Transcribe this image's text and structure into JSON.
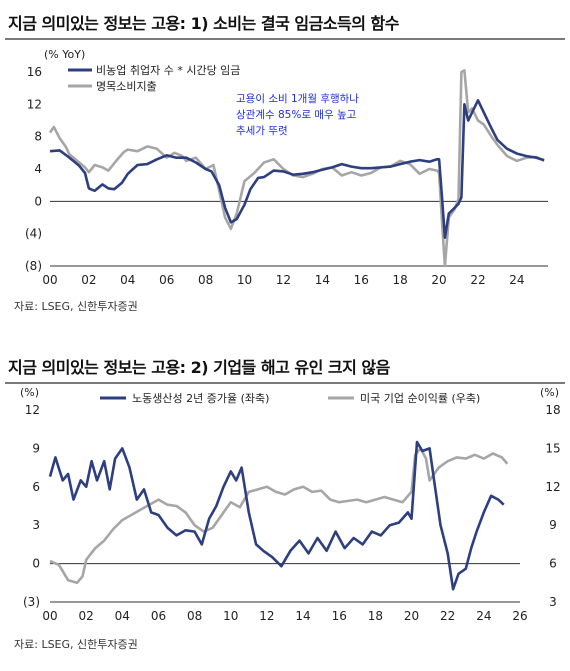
{
  "chart_data": [
    {
      "type": "line",
      "title": "지금 의미있는 정보는 고용: 1) 소비는 결국 임금소득의 함수",
      "ylabel": "(% YoY)",
      "ylim": [
        -8,
        16
      ],
      "yticks": [
        "(8)",
        "(4)",
        "0",
        "4",
        "8",
        "12",
        "16"
      ],
      "xlim": [
        2000,
        2025.6
      ],
      "xticks": [
        "00",
        "02",
        "04",
        "06",
        "08",
        "10",
        "12",
        "14",
        "16",
        "18",
        "20",
        "22",
        "24"
      ],
      "legend_position": "top-left",
      "annotation": [
        "고용이 소비 1개월 후행하나",
        "상관계수 85%로 매우 높고",
        "추세가 뚜렷"
      ],
      "annotation_color": "#1f2fd6",
      "series": [
        {
          "name": "비농업 취업자 수 * 시간당 임금",
          "color": "#2e3f7f",
          "points": [
            [
              2000.0,
              6.2
            ],
            [
              2000.5,
              6.3
            ],
            [
              2001.0,
              5.4
            ],
            [
              2001.5,
              4.4
            ],
            [
              2001.8,
              3.5
            ],
            [
              2002.0,
              1.6
            ],
            [
              2002.3,
              1.3
            ],
            [
              2002.7,
              2.1
            ],
            [
              2003.0,
              1.6
            ],
            [
              2003.3,
              1.5
            ],
            [
              2003.7,
              2.3
            ],
            [
              2004.0,
              3.4
            ],
            [
              2004.5,
              4.5
            ],
            [
              2005.0,
              4.6
            ],
            [
              2005.5,
              5.2
            ],
            [
              2006.0,
              5.7
            ],
            [
              2006.5,
              5.4
            ],
            [
              2007.0,
              5.4
            ],
            [
              2007.5,
              4.8
            ],
            [
              2008.0,
              4.0
            ],
            [
              2008.3,
              3.7
            ],
            [
              2008.7,
              2.0
            ],
            [
              2009.0,
              -0.8
            ],
            [
              2009.3,
              -2.6
            ],
            [
              2009.6,
              -2.2
            ],
            [
              2010.0,
              -0.4
            ],
            [
              2010.3,
              1.5
            ],
            [
              2010.7,
              2.9
            ],
            [
              2011.0,
              3.0
            ],
            [
              2011.5,
              3.8
            ],
            [
              2012.0,
              3.7
            ],
            [
              2012.5,
              3.3
            ],
            [
              2013.0,
              3.4
            ],
            [
              2013.5,
              3.6
            ],
            [
              2014.0,
              3.9
            ],
            [
              2014.5,
              4.2
            ],
            [
              2015.0,
              4.6
            ],
            [
              2015.5,
              4.3
            ],
            [
              2016.0,
              4.1
            ],
            [
              2016.5,
              4.1
            ],
            [
              2017.0,
              4.2
            ],
            [
              2017.5,
              4.3
            ],
            [
              2018.0,
              4.6
            ],
            [
              2018.5,
              4.9
            ],
            [
              2019.0,
              5.1
            ],
            [
              2019.5,
              4.9
            ],
            [
              2019.9,
              5.2
            ],
            [
              2020.0,
              5.2
            ],
            [
              2020.15,
              0.5
            ],
            [
              2020.3,
              -4.5
            ],
            [
              2020.5,
              -1.5
            ],
            [
              2020.8,
              -0.8
            ],
            [
              2021.0,
              -0.3
            ],
            [
              2021.15,
              0.5
            ],
            [
              2021.3,
              12.0
            ],
            [
              2021.5,
              10.0
            ],
            [
              2021.7,
              11.0
            ],
            [
              2022.0,
              12.5
            ],
            [
              2022.3,
              11.0
            ],
            [
              2022.7,
              9.0
            ],
            [
              2023.0,
              7.6
            ],
            [
              2023.5,
              6.5
            ],
            [
              2024.0,
              5.9
            ],
            [
              2024.5,
              5.6
            ],
            [
              2025.0,
              5.4
            ],
            [
              2025.4,
              5.1
            ]
          ]
        },
        {
          "name": "명목소비지출",
          "color": "#a6a6a6",
          "points": [
            [
              2000.0,
              8.5
            ],
            [
              2000.2,
              9.2
            ],
            [
              2000.5,
              7.8
            ],
            [
              2000.8,
              6.8
            ],
            [
              2001.0,
              5.8
            ],
            [
              2001.4,
              5.0
            ],
            [
              2001.8,
              4.2
            ],
            [
              2002.0,
              3.6
            ],
            [
              2002.3,
              4.5
            ],
            [
              2002.7,
              4.2
            ],
            [
              2003.0,
              3.8
            ],
            [
              2003.4,
              5.0
            ],
            [
              2003.8,
              6.1
            ],
            [
              2004.0,
              6.4
            ],
            [
              2004.5,
              6.2
            ],
            [
              2005.0,
              6.8
            ],
            [
              2005.5,
              6.5
            ],
            [
              2006.0,
              5.4
            ],
            [
              2006.4,
              6.0
            ],
            [
              2006.8,
              5.6
            ],
            [
              2007.0,
              5.0
            ],
            [
              2007.5,
              5.4
            ],
            [
              2008.0,
              4.0
            ],
            [
              2008.4,
              4.5
            ],
            [
              2008.8,
              0.2
            ],
            [
              2009.0,
              -2.0
            ],
            [
              2009.3,
              -3.4
            ],
            [
              2009.6,
              -1.5
            ],
            [
              2010.0,
              2.5
            ],
            [
              2010.5,
              3.5
            ],
            [
              2011.0,
              4.8
            ],
            [
              2011.5,
              5.2
            ],
            [
              2012.0,
              4.0
            ],
            [
              2012.5,
              3.2
            ],
            [
              2013.0,
              3.0
            ],
            [
              2013.5,
              3.4
            ],
            [
              2014.0,
              4.0
            ],
            [
              2014.5,
              4.2
            ],
            [
              2015.0,
              3.2
            ],
            [
              2015.5,
              3.6
            ],
            [
              2016.0,
              3.2
            ],
            [
              2016.5,
              3.5
            ],
            [
              2017.0,
              4.2
            ],
            [
              2017.5,
              4.3
            ],
            [
              2018.0,
              5.0
            ],
            [
              2018.5,
              4.6
            ],
            [
              2019.0,
              3.4
            ],
            [
              2019.5,
              4.0
            ],
            [
              2019.9,
              3.8
            ],
            [
              2020.0,
              3.5
            ],
            [
              2020.15,
              -2.5
            ],
            [
              2020.3,
              -8.0
            ],
            [
              2020.5,
              -2.0
            ],
            [
              2020.8,
              -1.0
            ],
            [
              2021.0,
              0.3
            ],
            [
              2021.15,
              16.0
            ],
            [
              2021.3,
              16.2
            ],
            [
              2021.5,
              11.0
            ],
            [
              2021.7,
              11.5
            ],
            [
              2022.0,
              10.0
            ],
            [
              2022.3,
              9.5
            ],
            [
              2022.7,
              8.0
            ],
            [
              2023.0,
              7.0
            ],
            [
              2023.5,
              5.6
            ],
            [
              2024.0,
              5.0
            ],
            [
              2024.5,
              5.4
            ],
            [
              2025.0,
              5.5
            ],
            [
              2025.4,
              5.0
            ]
          ]
        }
      ]
    },
    {
      "type": "line",
      "title": "지금 의미있는 정보는 고용: 2) 기업들 해고 유인 크지 않음",
      "ylabel_left": "(%)",
      "ylabel_right": "(%)",
      "ylim_left": [
        -3,
        12
      ],
      "yticks_left": [
        "(3)",
        "0",
        "3",
        "6",
        "9",
        "12"
      ],
      "ylim_right": [
        3,
        18
      ],
      "yticks_right": [
        "3",
        "6",
        "9",
        "12",
        "15",
        "18"
      ],
      "xlim": [
        2000,
        2026
      ],
      "xticks": [
        "00",
        "02",
        "04",
        "06",
        "08",
        "10",
        "12",
        "14",
        "16",
        "18",
        "20",
        "22",
        "24",
        "26"
      ],
      "legend_position": "top",
      "series": [
        {
          "name": "노동생산성 2년 증가율 (좌축)",
          "color": "#2e3f7f",
          "axis": "left",
          "points": [
            [
              2000.0,
              6.8
            ],
            [
              2000.3,
              8.3
            ],
            [
              2000.7,
              6.5
            ],
            [
              2001.0,
              7.0
            ],
            [
              2001.3,
              5.0
            ],
            [
              2001.7,
              6.5
            ],
            [
              2002.0,
              6.0
            ],
            [
              2002.3,
              8.0
            ],
            [
              2002.6,
              6.5
            ],
            [
              2003.0,
              8.0
            ],
            [
              2003.3,
              5.8
            ],
            [
              2003.6,
              8.2
            ],
            [
              2004.0,
              9.0
            ],
            [
              2004.4,
              7.5
            ],
            [
              2004.8,
              5.0
            ],
            [
              2005.2,
              5.8
            ],
            [
              2005.6,
              4.0
            ],
            [
              2006.0,
              3.8
            ],
            [
              2006.5,
              2.8
            ],
            [
              2007.0,
              2.2
            ],
            [
              2007.5,
              2.6
            ],
            [
              2008.0,
              2.5
            ],
            [
              2008.4,
              1.5
            ],
            [
              2008.8,
              3.5
            ],
            [
              2009.2,
              4.5
            ],
            [
              2009.6,
              6.0
            ],
            [
              2010.0,
              7.2
            ],
            [
              2010.3,
              6.5
            ],
            [
              2010.6,
              7.5
            ],
            [
              2011.0,
              4.0
            ],
            [
              2011.4,
              1.5
            ],
            [
              2011.8,
              1.0
            ],
            [
              2012.3,
              0.5
            ],
            [
              2012.8,
              -0.2
            ],
            [
              2013.3,
              1.0
            ],
            [
              2013.8,
              1.8
            ],
            [
              2014.3,
              0.8
            ],
            [
              2014.8,
              2.0
            ],
            [
              2015.3,
              1.0
            ],
            [
              2015.8,
              2.5
            ],
            [
              2016.3,
              1.2
            ],
            [
              2016.8,
              2.0
            ],
            [
              2017.3,
              1.5
            ],
            [
              2017.8,
              2.5
            ],
            [
              2018.3,
              2.2
            ],
            [
              2018.8,
              3.0
            ],
            [
              2019.3,
              3.2
            ],
            [
              2019.8,
              4.0
            ],
            [
              2020.0,
              3.5
            ],
            [
              2020.3,
              9.5
            ],
            [
              2020.6,
              8.8
            ],
            [
              2021.0,
              9.0
            ],
            [
              2021.3,
              6.0
            ],
            [
              2021.6,
              3.0
            ],
            [
              2022.0,
              0.8
            ],
            [
              2022.3,
              -2.0
            ],
            [
              2022.6,
              -0.8
            ],
            [
              2023.0,
              -0.4
            ],
            [
              2023.3,
              1.2
            ],
            [
              2023.6,
              2.5
            ],
            [
              2024.0,
              4.0
            ],
            [
              2024.4,
              5.3
            ],
            [
              2024.8,
              5.0
            ],
            [
              2025.1,
              4.6
            ]
          ]
        },
        {
          "name": "미국 기업 순이익률 (우축)",
          "color": "#a6a6a6",
          "axis": "right",
          "points": [
            [
              2000.0,
              6.2
            ],
            [
              2000.5,
              5.9
            ],
            [
              2001.0,
              4.7
            ],
            [
              2001.5,
              4.5
            ],
            [
              2001.8,
              5.0
            ],
            [
              2002.0,
              6.3
            ],
            [
              2002.5,
              7.2
            ],
            [
              2003.0,
              7.8
            ],
            [
              2003.5,
              8.7
            ],
            [
              2004.0,
              9.4
            ],
            [
              2004.5,
              9.8
            ],
            [
              2005.0,
              10.2
            ],
            [
              2005.5,
              10.6
            ],
            [
              2006.0,
              11.0
            ],
            [
              2006.5,
              10.6
            ],
            [
              2007.0,
              10.5
            ],
            [
              2007.5,
              10.0
            ],
            [
              2008.0,
              9.0
            ],
            [
              2008.5,
              8.5
            ],
            [
              2009.0,
              8.8
            ],
            [
              2009.5,
              9.8
            ],
            [
              2010.0,
              10.8
            ],
            [
              2010.5,
              10.4
            ],
            [
              2011.0,
              11.6
            ],
            [
              2011.5,
              11.8
            ],
            [
              2012.0,
              12.0
            ],
            [
              2012.5,
              11.6
            ],
            [
              2013.0,
              11.4
            ],
            [
              2013.5,
              11.8
            ],
            [
              2014.0,
              12.0
            ],
            [
              2014.5,
              11.6
            ],
            [
              2015.0,
              11.7
            ],
            [
              2015.5,
              11.0
            ],
            [
              2016.0,
              10.8
            ],
            [
              2016.5,
              10.9
            ],
            [
              2017.0,
              11.0
            ],
            [
              2017.5,
              10.8
            ],
            [
              2018.0,
              11.0
            ],
            [
              2018.5,
              11.2
            ],
            [
              2019.0,
              11.0
            ],
            [
              2019.5,
              10.8
            ],
            [
              2020.0,
              11.6
            ],
            [
              2020.2,
              14.5
            ],
            [
              2020.5,
              15.0
            ],
            [
              2020.8,
              14.2
            ],
            [
              2021.0,
              12.5
            ],
            [
              2021.5,
              13.5
            ],
            [
              2022.0,
              14.0
            ],
            [
              2022.5,
              14.3
            ],
            [
              2023.0,
              14.2
            ],
            [
              2023.5,
              14.5
            ],
            [
              2024.0,
              14.2
            ],
            [
              2024.5,
              14.6
            ],
            [
              2025.0,
              14.3
            ],
            [
              2025.3,
              13.8
            ]
          ]
        }
      ]
    }
  ],
  "source_1": "자료: LSEG, 신한투자증권",
  "source_2": "자료: LSEG, 신한투자증권"
}
